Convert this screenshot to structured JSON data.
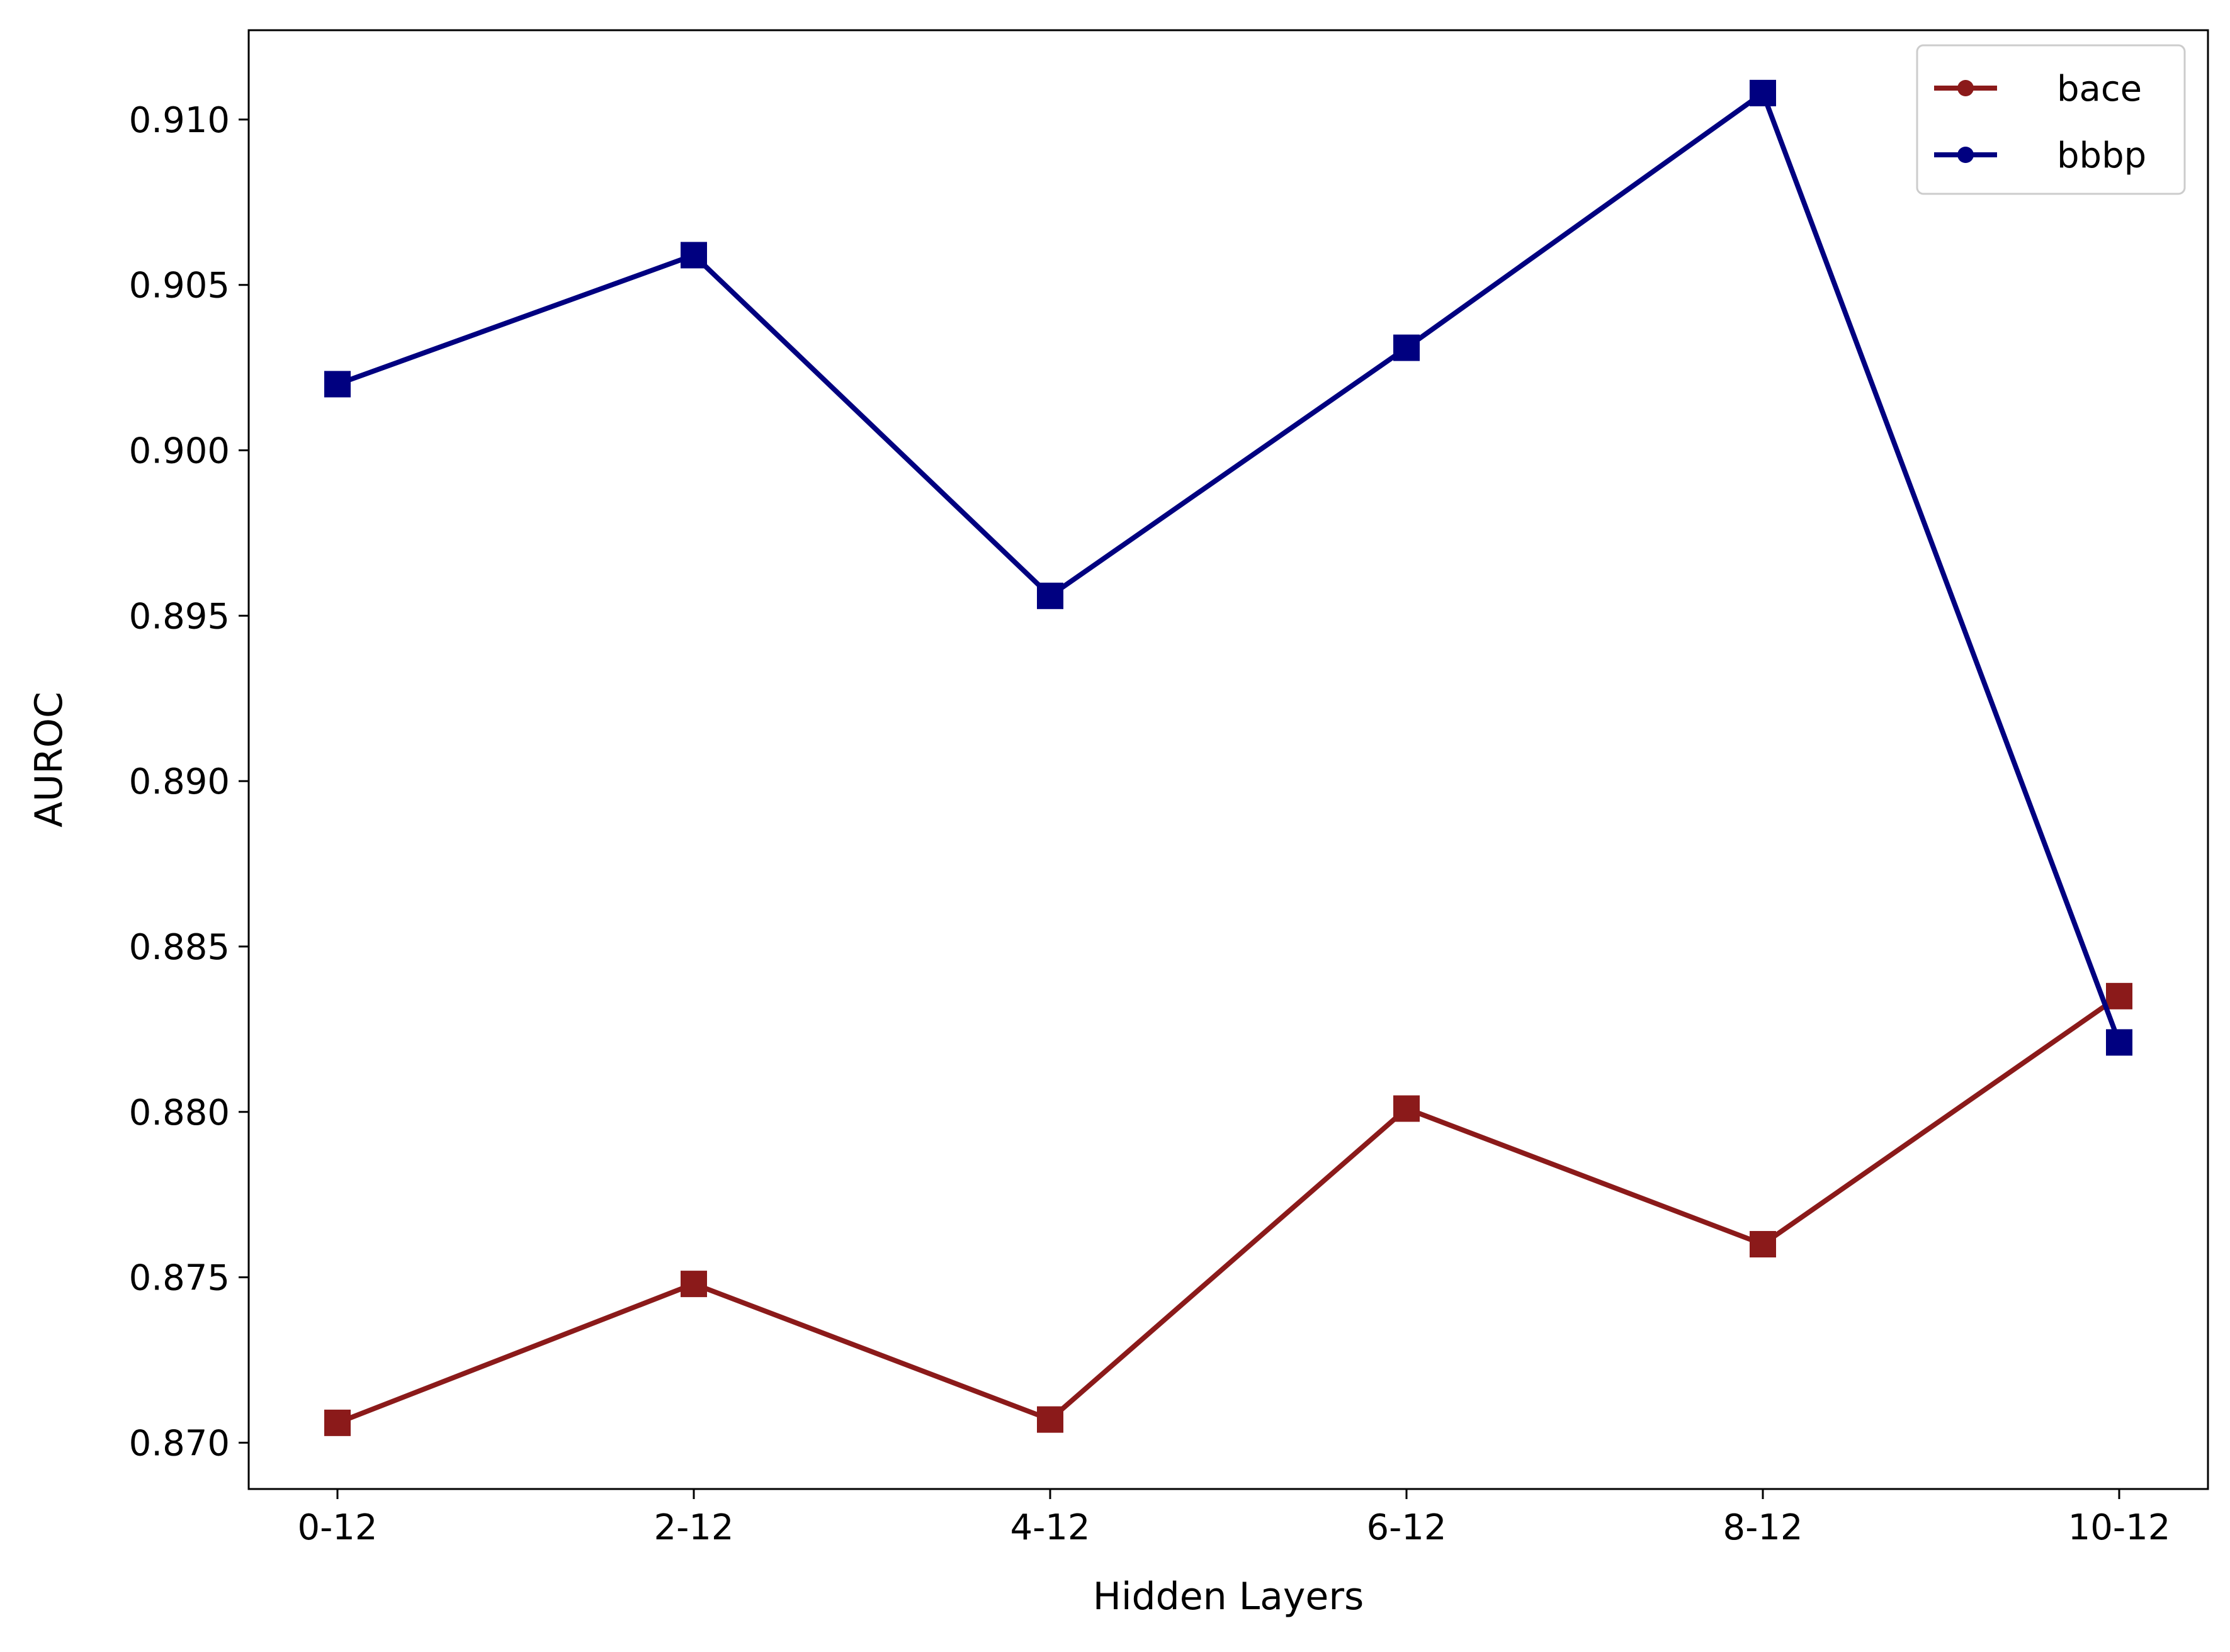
{
  "chart_data": {
    "type": "line",
    "title": "",
    "xlabel": "Hidden Layers",
    "ylabel": "AUROC",
    "categories": [
      "0-12",
      "2-12",
      "4-12",
      "6-12",
      "8-12",
      "10-12"
    ],
    "ylim": [
      0.8686,
      0.9127
    ],
    "yticks": [
      0.87,
      0.875,
      0.88,
      0.885,
      0.89,
      0.895,
      0.9,
      0.905,
      0.91
    ],
    "ytick_labels": [
      "0.870",
      "0.875",
      "0.880",
      "0.885",
      "0.890",
      "0.895",
      "0.900",
      "0.905",
      "0.910"
    ],
    "grid": false,
    "legend_position": "top-right",
    "series": [
      {
        "name": "bace",
        "color": "#8b1a1a",
        "marker": "square",
        "values": [
          0.8706,
          0.8748,
          0.8707,
          0.8801,
          0.876,
          0.8835
        ]
      },
      {
        "name": "bbbp",
        "color": "#000080",
        "marker": "square",
        "values": [
          0.902,
          0.9059,
          0.8956,
          0.9031,
          0.9108,
          0.8821
        ]
      }
    ]
  }
}
